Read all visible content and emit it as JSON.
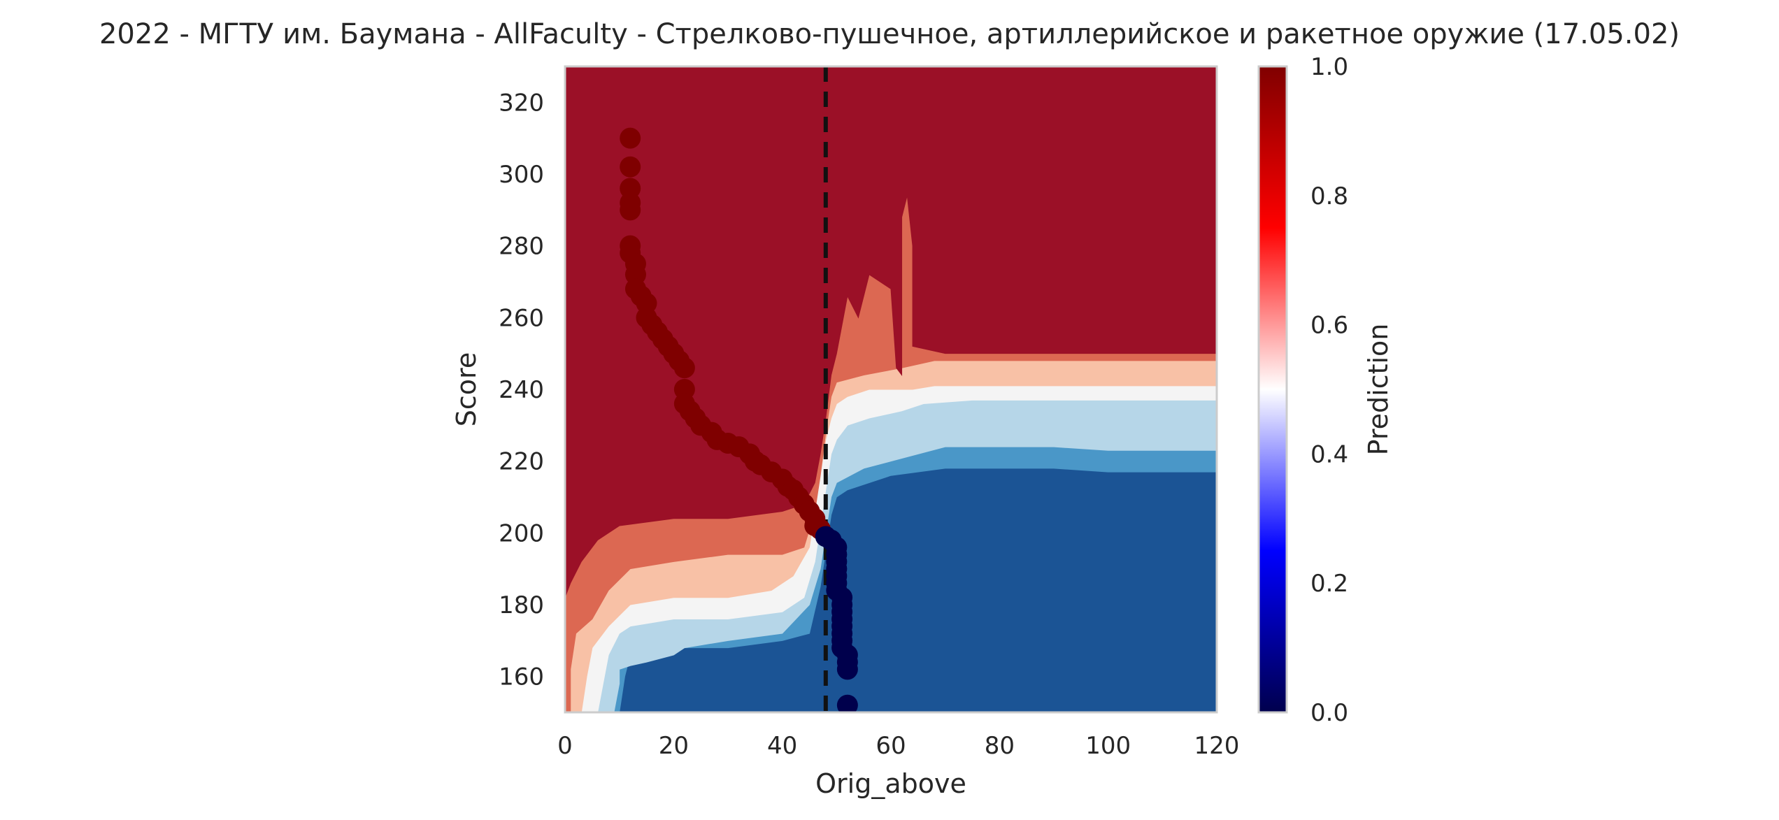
{
  "chart_data": {
    "type": "contour",
    "title": "2022 - МГТУ им. Баумана - AllFaculty - Стрелково-пушечное, артиллерийское и ракетное оружие (17.05.02)",
    "xlabel": "Orig_above",
    "ylabel": "Score",
    "xlim": [
      0,
      120
    ],
    "ylim": [
      150,
      330
    ],
    "x_ticks": [
      0,
      20,
      40,
      60,
      80,
      100,
      120
    ],
    "y_ticks": [
      160,
      180,
      200,
      220,
      240,
      260,
      280,
      300,
      320
    ],
    "grid": false,
    "threshold_line": {
      "x": 48,
      "style": "dashed",
      "color": "#111111"
    },
    "colorbar": {
      "label": "Prediction",
      "range": [
        0,
        1
      ],
      "ticks": [
        0.0,
        0.2,
        0.4,
        0.6,
        0.8,
        1.0
      ],
      "tick_labels": [
        "0.0",
        "0.2",
        "0.4",
        "0.6",
        "0.8",
        "1.0"
      ],
      "colormap": "seismic",
      "gradient_stops": [
        {
          "value": 0.0,
          "color": "#00004d"
        },
        {
          "value": 0.25,
          "color": "#0000ff"
        },
        {
          "value": 0.5,
          "color": "#ffffff"
        },
        {
          "value": 0.75,
          "color": "#ff0000"
        },
        {
          "value": 1.0,
          "color": "#800000"
        }
      ]
    },
    "contour_levels": [
      {
        "range": [
          0.0,
          0.2
        ],
        "color": "#1b5495"
      },
      {
        "range": [
          0.2,
          0.3
        ],
        "color": "#4a97c8"
      },
      {
        "range": [
          0.3,
          0.45
        ],
        "color": "#b6d6e8"
      },
      {
        "range": [
          0.45,
          0.55
        ],
        "color": "#f4f4f4"
      },
      {
        "range": [
          0.55,
          0.7
        ],
        "color": "#f8c1a6"
      },
      {
        "range": [
          0.7,
          0.85
        ],
        "color": "#dc6852"
      },
      {
        "range": [
          0.85,
          1.0
        ],
        "color": "#9b1027"
      }
    ],
    "region_boundaries": [
      {
        "level": 1,
        "points": [
          [
            10,
            150
          ],
          [
            11,
            160
          ],
          [
            12,
            166
          ],
          [
            20,
            168
          ],
          [
            30,
            168
          ],
          [
            40,
            170
          ],
          [
            45,
            172
          ],
          [
            47,
            185
          ],
          [
            48,
            195
          ],
          [
            49,
            205
          ],
          [
            50,
            210
          ],
          [
            52,
            212
          ],
          [
            60,
            216
          ],
          [
            70,
            218
          ],
          [
            80,
            218
          ],
          [
            90,
            218
          ],
          [
            100,
            217
          ],
          [
            120,
            217
          ]
        ]
      },
      {
        "level": 2,
        "points": [
          [
            9,
            150
          ],
          [
            10,
            158
          ],
          [
            10,
            162
          ],
          [
            12,
            163
          ],
          [
            15,
            164
          ],
          [
            20,
            166
          ],
          [
            22,
            168
          ],
          [
            30,
            170
          ],
          [
            40,
            172
          ],
          [
            45,
            180
          ],
          [
            47,
            190
          ],
          [
            48,
            200
          ],
          [
            49,
            210
          ],
          [
            50,
            214
          ],
          [
            55,
            218
          ],
          [
            60,
            220
          ],
          [
            65,
            222
          ],
          [
            70,
            224
          ],
          [
            80,
            224
          ],
          [
            90,
            224
          ],
          [
            100,
            223
          ],
          [
            120,
            223
          ]
        ]
      },
      {
        "level": 3,
        "points": [
          [
            6,
            150
          ],
          [
            7,
            158
          ],
          [
            8,
            166
          ],
          [
            10,
            172
          ],
          [
            12,
            174
          ],
          [
            20,
            176
          ],
          [
            30,
            176
          ],
          [
            40,
            178
          ],
          [
            44,
            182
          ],
          [
            46,
            192
          ],
          [
            47,
            202
          ],
          [
            48,
            212
          ],
          [
            49,
            222
          ],
          [
            50,
            226
          ],
          [
            52,
            230
          ],
          [
            56,
            232
          ],
          [
            62,
            234
          ],
          [
            66,
            236
          ],
          [
            75,
            237
          ],
          [
            90,
            237
          ],
          [
            120,
            237
          ]
        ]
      },
      {
        "level": 4,
        "points": [
          [
            3,
            150
          ],
          [
            4,
            160
          ],
          [
            5,
            168
          ],
          [
            8,
            174
          ],
          [
            12,
            180
          ],
          [
            20,
            182
          ],
          [
            30,
            182
          ],
          [
            38,
            184
          ],
          [
            42,
            188
          ],
          [
            45,
            196
          ],
          [
            46,
            206
          ],
          [
            47,
            216
          ],
          [
            48,
            226
          ],
          [
            49,
            232
          ],
          [
            50,
            236
          ],
          [
            52,
            238
          ],
          [
            56,
            240
          ],
          [
            64,
            240
          ],
          [
            68,
            241
          ],
          [
            80,
            241
          ],
          [
            120,
            241
          ]
        ]
      },
      {
        "level": 5,
        "points": [
          [
            1,
            150
          ],
          [
            1,
            162
          ],
          [
            2,
            172
          ],
          [
            5,
            176
          ],
          [
            8,
            184
          ],
          [
            12,
            190
          ],
          [
            20,
            192
          ],
          [
            30,
            194
          ],
          [
            40,
            194
          ],
          [
            44,
            196
          ],
          [
            46,
            206
          ],
          [
            47,
            216
          ],
          [
            48,
            228
          ],
          [
            49,
            238
          ],
          [
            50,
            242
          ],
          [
            55,
            244
          ],
          [
            62,
            246
          ],
          [
            68,
            248
          ],
          [
            80,
            248
          ],
          [
            120,
            248
          ]
        ]
      },
      {
        "level": 6,
        "points": [
          [
            0,
            182
          ],
          [
            1,
            186
          ],
          [
            3,
            192
          ],
          [
            6,
            198
          ],
          [
            10,
            202
          ],
          [
            20,
            204
          ],
          [
            30,
            204
          ],
          [
            40,
            206
          ],
          [
            44,
            208
          ],
          [
            46,
            214
          ],
          [
            47,
            222
          ],
          [
            48,
            232
          ],
          [
            49,
            244
          ],
          [
            50,
            250
          ],
          [
            52,
            266
          ],
          [
            54,
            260
          ],
          [
            56,
            272
          ],
          [
            60,
            268
          ],
          [
            61,
            246
          ],
          [
            62,
            244
          ],
          [
            62,
            288
          ],
          [
            63,
            294
          ],
          [
            64,
            280
          ],
          [
            64,
            252
          ],
          [
            70,
            250
          ],
          [
            80,
            250
          ],
          [
            120,
            250
          ]
        ]
      }
    ],
    "points_above_series": {
      "name": "",
      "color": "#7f0000",
      "points": [
        [
          12,
          310
        ],
        [
          12,
          302
        ],
        [
          12,
          296
        ],
        [
          12,
          292
        ],
        [
          12,
          290
        ],
        [
          12,
          280
        ],
        [
          12,
          278
        ],
        [
          13,
          275
        ],
        [
          13,
          272
        ],
        [
          13,
          268
        ],
        [
          14,
          266
        ],
        [
          15,
          264
        ],
        [
          15,
          260
        ],
        [
          16,
          258
        ],
        [
          17,
          256
        ],
        [
          18,
          254
        ],
        [
          19,
          252
        ],
        [
          20,
          250
        ],
        [
          21,
          248
        ],
        [
          22,
          246
        ],
        [
          22,
          240
        ],
        [
          22,
          236
        ],
        [
          23,
          234
        ],
        [
          24,
          232
        ],
        [
          25,
          230
        ],
        [
          27,
          228
        ],
        [
          28,
          226
        ],
        [
          30,
          225
        ],
        [
          32,
          224
        ],
        [
          34,
          222
        ],
        [
          35,
          220
        ],
        [
          36,
          219
        ],
        [
          38,
          217
        ],
        [
          40,
          215
        ],
        [
          41,
          213
        ],
        [
          42,
          212
        ],
        [
          43,
          210
        ],
        [
          44,
          208
        ],
        [
          45,
          206
        ],
        [
          46,
          204
        ],
        [
          46,
          202
        ],
        [
          47,
          201
        ]
      ]
    },
    "points_below_series": {
      "name": "",
      "color": "#00004c",
      "points": [
        [
          48,
          199
        ],
        [
          49,
          198
        ],
        [
          50,
          196
        ],
        [
          50,
          194
        ],
        [
          50,
          192
        ],
        [
          50,
          190
        ],
        [
          50,
          188
        ],
        [
          50,
          186
        ],
        [
          50,
          184
        ],
        [
          51,
          182
        ],
        [
          51,
          180
        ],
        [
          51,
          178
        ],
        [
          51,
          176
        ],
        [
          51,
          174
        ],
        [
          51,
          172
        ],
        [
          51,
          170
        ],
        [
          51,
          168
        ],
        [
          52,
          166
        ],
        [
          52,
          164
        ],
        [
          52,
          162
        ],
        [
          52,
          152
        ]
      ]
    }
  }
}
